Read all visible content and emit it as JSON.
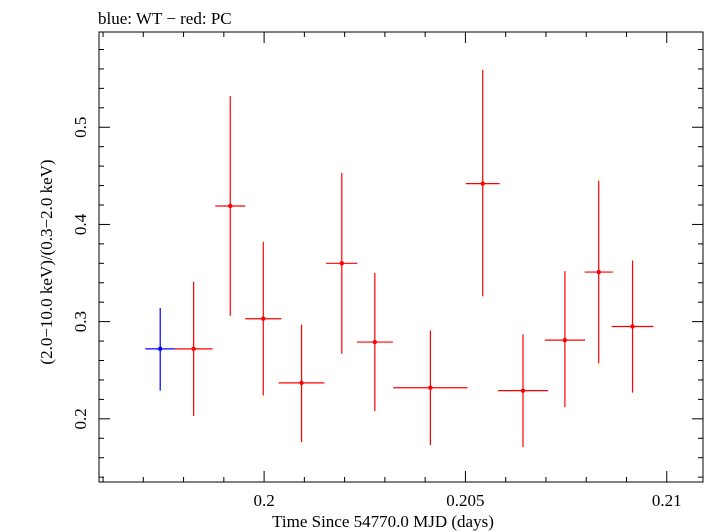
{
  "chart_data": {
    "type": "scatter",
    "title": "blue: WT − red: PC",
    "xlabel": "Time Since 54770.0 MJD (days)",
    "ylabel": "(2.0−10.0 keV)/(0.3−2.0 keV)",
    "xlim": [
      0.1959,
      0.2109
    ],
    "ylim": [
      0.135,
      0.598
    ],
    "x_ticks": [
      0.2,
      0.205,
      0.21
    ],
    "x_tick_labels": [
      "0.2",
      "0.205",
      "0.21"
    ],
    "y_ticks": [
      0.2,
      0.3,
      0.4,
      0.5
    ],
    "y_tick_labels": [
      "0.2",
      "0.3",
      "0.4",
      "0.5"
    ],
    "series": [
      {
        "name": "WT",
        "color": "#0000ff",
        "points": [
          {
            "x": 0.19742,
            "y": 0.272,
            "xerr": 0.00037,
            "ylo": 0.229,
            "yhi": 0.314
          }
        ]
      },
      {
        "name": "PC",
        "color": "#ff0000",
        "points": [
          {
            "x": 0.19825,
            "y": 0.272,
            "xerr": 0.00047,
            "ylo": 0.203,
            "yhi": 0.341
          },
          {
            "x": 0.19916,
            "y": 0.419,
            "xerr": 0.00037,
            "ylo": 0.306,
            "yhi": 0.532
          },
          {
            "x": 0.19998,
            "y": 0.303,
            "xerr": 0.00045,
            "ylo": 0.224,
            "yhi": 0.382
          },
          {
            "x": 0.20093,
            "y": 0.237,
            "xerr": 0.00057,
            "ylo": 0.176,
            "yhi": 0.297
          },
          {
            "x": 0.20193,
            "y": 0.36,
            "xerr": 0.00039,
            "ylo": 0.267,
            "yhi": 0.453
          },
          {
            "x": 0.20275,
            "y": 0.279,
            "xerr": 0.00045,
            "ylo": 0.208,
            "yhi": 0.35
          },
          {
            "x": 0.20413,
            "y": 0.232,
            "xerr": 0.00092,
            "ylo": 0.173,
            "yhi": 0.291
          },
          {
            "x": 0.20543,
            "y": 0.442,
            "xerr": 0.00042,
            "ylo": 0.326,
            "yhi": 0.559
          },
          {
            "x": 0.20643,
            "y": 0.229,
            "xerr": 0.00062,
            "ylo": 0.171,
            "yhi": 0.287
          },
          {
            "x": 0.20747,
            "y": 0.281,
            "xerr": 0.0005,
            "ylo": 0.212,
            "yhi": 0.352
          },
          {
            "x": 0.20831,
            "y": 0.351,
            "xerr": 0.00035,
            "ylo": 0.257,
            "yhi": 0.445
          },
          {
            "x": 0.20915,
            "y": 0.295,
            "xerr": 0.00052,
            "ylo": 0.227,
            "yhi": 0.363
          }
        ]
      }
    ]
  }
}
